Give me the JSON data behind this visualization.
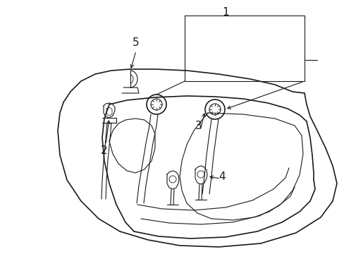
{
  "background_color": "#ffffff",
  "line_color": "#1a1a1a",
  "figsize": [
    4.89,
    3.6
  ],
  "dpi": 100,
  "label_fontsize": 11
}
